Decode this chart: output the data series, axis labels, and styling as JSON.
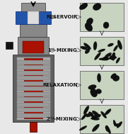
{
  "bg_color": "#e8e8e8",
  "labels": [
    "RESERVOIR",
    "1$^{st}$ MIXING",
    "RELAXATION",
    "2$^{nd}$ MIXING"
  ],
  "label_fontsize": 5.0,
  "box_fill": "#c8d4c0",
  "box_edge": "#666666",
  "device_colors": {
    "outer_dark": "#606060",
    "outer_mid": "#888888",
    "outer_light": "#aaaaaa",
    "red_core": "#aa1100",
    "blue_top": "#2255aa",
    "white_piston": "#dddddd",
    "gray_cap": "#909090",
    "black": "#111111",
    "fin_gray": "#999999",
    "fin_light": "#bbbbbb"
  }
}
